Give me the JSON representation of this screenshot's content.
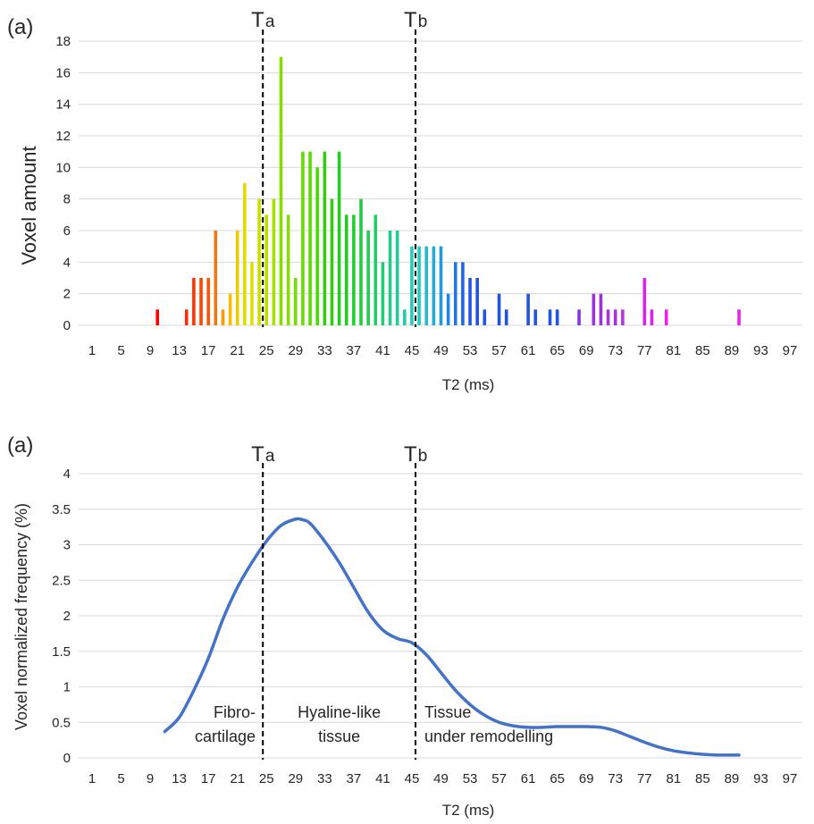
{
  "chart_data": [
    {
      "type": "bar",
      "panel_label": "(a)",
      "xlabel": "T2 (ms)",
      "ylabel": "Voxel amount",
      "ylim": [
        0,
        18
      ],
      "yticks": [
        "0",
        "2",
        "4",
        "6",
        "8",
        "10",
        "12",
        "14",
        "16",
        "18"
      ],
      "xlim": [
        1,
        98
      ],
      "xticks": [
        "1",
        "5",
        "9",
        "13",
        "17",
        "21",
        "25",
        "29",
        "33",
        "37",
        "41",
        "45",
        "49",
        "53",
        "57",
        "61",
        "65",
        "69",
        "73",
        "77",
        "81",
        "85",
        "89",
        "93",
        "97"
      ],
      "grid": "horizontal",
      "thresholds": [
        {
          "label_main": "T",
          "label_sub": "a",
          "x": 24.5
        },
        {
          "label_main": "T",
          "label_sub": "b",
          "x": 45.5
        }
      ],
      "bars": [
        {
          "x": 10,
          "value": 1,
          "color": "#ff0000"
        },
        {
          "x": 14,
          "value": 1,
          "color": "#ff2a00"
        },
        {
          "x": 15,
          "value": 3,
          "color": "#ff3300"
        },
        {
          "x": 16,
          "value": 3,
          "color": "#ff4400"
        },
        {
          "x": 17,
          "value": 3,
          "color": "#ff5500"
        },
        {
          "x": 18,
          "value": 6,
          "color": "#ee7711"
        },
        {
          "x": 19,
          "value": 1,
          "color": "#ff9900"
        },
        {
          "x": 20,
          "value": 2,
          "color": "#ffbb00"
        },
        {
          "x": 21,
          "value": 6,
          "color": "#e8cc00"
        },
        {
          "x": 22,
          "value": 9,
          "color": "#dddd00"
        },
        {
          "x": 23,
          "value": 4,
          "color": "#dde000"
        },
        {
          "x": 24,
          "value": 8,
          "color": "#ccdd00"
        },
        {
          "x": 25,
          "value": 7,
          "color": "#bbdd00"
        },
        {
          "x": 26,
          "value": 8,
          "color": "#aadd00"
        },
        {
          "x": 27,
          "value": 17,
          "color": "#88dd00"
        },
        {
          "x": 28,
          "value": 7,
          "color": "#88dd00"
        },
        {
          "x": 29,
          "value": 3,
          "color": "#77dd00"
        },
        {
          "x": 30,
          "value": 11,
          "color": "#66dd00"
        },
        {
          "x": 31,
          "value": 11,
          "color": "#55dd00"
        },
        {
          "x": 32,
          "value": 10,
          "color": "#44dd00"
        },
        {
          "x": 33,
          "value": 11,
          "color": "#33cc11"
        },
        {
          "x": 34,
          "value": 8,
          "color": "#33cc11"
        },
        {
          "x": 35,
          "value": 11,
          "color": "#22cc22"
        },
        {
          "x": 36,
          "value": 7,
          "color": "#22cc22"
        },
        {
          "x": 37,
          "value": 7,
          "color": "#22cc33"
        },
        {
          "x": 38,
          "value": 8,
          "color": "#22cc44"
        },
        {
          "x": 39,
          "value": 6,
          "color": "#22cc55"
        },
        {
          "x": 40,
          "value": 7,
          "color": "#22cc66"
        },
        {
          "x": 41,
          "value": 4,
          "color": "#22cc77"
        },
        {
          "x": 42,
          "value": 6,
          "color": "#22cc88"
        },
        {
          "x": 43,
          "value": 6,
          "color": "#22cc99"
        },
        {
          "x": 44,
          "value": 1,
          "color": "#22ccaa"
        },
        {
          "x": 45,
          "value": 5,
          "color": "#22ccbb"
        },
        {
          "x": 46,
          "value": 5,
          "color": "#22ccbb"
        },
        {
          "x": 47,
          "value": 5,
          "color": "#22bbcc"
        },
        {
          "x": 48,
          "value": 5,
          "color": "#22aadd"
        },
        {
          "x": 49,
          "value": 5,
          "color": "#2299dd"
        },
        {
          "x": 50,
          "value": 2,
          "color": "#2288dd"
        },
        {
          "x": 51,
          "value": 4,
          "color": "#2277dd"
        },
        {
          "x": 52,
          "value": 4,
          "color": "#2266dd"
        },
        {
          "x": 53,
          "value": 3,
          "color": "#2255dd"
        },
        {
          "x": 54,
          "value": 3,
          "color": "#2255dd"
        },
        {
          "x": 55,
          "value": 1,
          "color": "#2255dd"
        },
        {
          "x": 57,
          "value": 2,
          "color": "#2255dd"
        },
        {
          "x": 58,
          "value": 1,
          "color": "#2255dd"
        },
        {
          "x": 61,
          "value": 2,
          "color": "#2255dd"
        },
        {
          "x": 62,
          "value": 1,
          "color": "#2255dd"
        },
        {
          "x": 64,
          "value": 1,
          "color": "#2255dd"
        },
        {
          "x": 65,
          "value": 1,
          "color": "#2255dd"
        },
        {
          "x": 68,
          "value": 1,
          "color": "#8833dd"
        },
        {
          "x": 70,
          "value": 2,
          "color": "#9933dd"
        },
        {
          "x": 71,
          "value": 2,
          "color": "#9933dd"
        },
        {
          "x": 72,
          "value": 1,
          "color": "#aa33dd"
        },
        {
          "x": 73,
          "value": 1,
          "color": "#aa33dd"
        },
        {
          "x": 74,
          "value": 1,
          "color": "#bb33dd"
        },
        {
          "x": 77,
          "value": 3,
          "color": "#dd22ee"
        },
        {
          "x": 78,
          "value": 1,
          "color": "#dd22ee"
        },
        {
          "x": 80,
          "value": 1,
          "color": "#ee22ee"
        },
        {
          "x": 90,
          "value": 1,
          "color": "#ee22ee"
        }
      ]
    },
    {
      "type": "line",
      "panel_label": "(a)",
      "xlabel": "T2 (ms)",
      "ylabel": "Voxel normalized frequency (%)",
      "ylim": [
        0,
        4
      ],
      "yticks": [
        "0",
        "0.5",
        "1",
        "1.5",
        "2",
        "2.5",
        "3",
        "3.5",
        "4"
      ],
      "xlim": [
        1,
        98
      ],
      "xticks": [
        "1",
        "5",
        "9",
        "13",
        "17",
        "21",
        "25",
        "29",
        "33",
        "37",
        "41",
        "45",
        "49",
        "53",
        "57",
        "61",
        "65",
        "69",
        "73",
        "77",
        "81",
        "85",
        "89",
        "93",
        "97"
      ],
      "grid": "horizontal",
      "line_color": "#4472c4",
      "thresholds": [
        {
          "label_main": "T",
          "label_sub": "a",
          "x": 24.5
        },
        {
          "label_main": "T",
          "label_sub": "b",
          "x": 45.5
        }
      ],
      "regions": [
        {
          "lines": [
            "Fibro-",
            "cartilage"
          ],
          "x": 18.5
        },
        {
          "lines": [
            "Hyaline-like",
            "tissue"
          ],
          "x": 35
        },
        {
          "lines": [
            "Tissue",
            "under remodelling"
          ],
          "x": 46.5
        }
      ],
      "series": [
        {
          "x": [
            11,
            13,
            15,
            17,
            19,
            21,
            23,
            25,
            27,
            29,
            30,
            31,
            33,
            35,
            37,
            39,
            41,
            43,
            45,
            47,
            49,
            51,
            53,
            55,
            57,
            59,
            61,
            63,
            65,
            67,
            69,
            71,
            73,
            75,
            77,
            79,
            81,
            83,
            85,
            87,
            89,
            90
          ],
          "values": [
            0.37,
            0.57,
            0.95,
            1.4,
            1.95,
            2.4,
            2.75,
            3.05,
            3.27,
            3.36,
            3.35,
            3.3,
            3.05,
            2.75,
            2.4,
            2.05,
            1.8,
            1.68,
            1.62,
            1.45,
            1.2,
            0.95,
            0.75,
            0.6,
            0.5,
            0.45,
            0.43,
            0.43,
            0.44,
            0.44,
            0.44,
            0.43,
            0.38,
            0.3,
            0.22,
            0.15,
            0.1,
            0.07,
            0.05,
            0.04,
            0.04,
            0.04
          ]
        }
      ]
    }
  ]
}
